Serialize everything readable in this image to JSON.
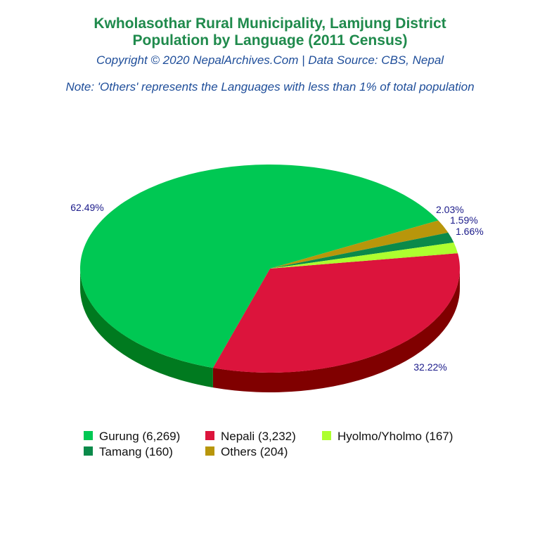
{
  "title_line1": "Kwholasothar Rural Municipality, Lamjung District",
  "title_line2": "Population by Language (2011 Census)",
  "subtitle": "Copyright © 2020 NepalArchives.Com | Data Source: CBS, Nepal",
  "note": "Note: 'Others' represents the Languages with less than 1% of total population",
  "chart_data": {
    "type": "pie",
    "style": "3d",
    "slices": [
      {
        "label": "Gurung",
        "value": 6269,
        "percent_label": "62.49%",
        "legend": "Gurung (6,269)",
        "color": "#00c853",
        "side_color": "#007a1f"
      },
      {
        "label": "Nepali",
        "value": 3232,
        "percent_label": "32.22%",
        "legend": "Nepali (3,232)",
        "color": "#dc143c",
        "side_color": "#800000"
      },
      {
        "label": "Hyolmo/Yholmo",
        "value": 167,
        "percent_label": "1.66%",
        "legend": "Hyolmo/Yholmo (167)",
        "color": "#adff2f",
        "side_color": "#6a9a1a"
      },
      {
        "label": "Tamang",
        "value": 160,
        "percent_label": "1.59%",
        "legend": "Tamang (160)",
        "color": "#0b8a4a",
        "side_color": "#05552c"
      },
      {
        "label": "Others",
        "value": 204,
        "percent_label": "2.03%",
        "legend": "Others (204)",
        "color": "#b8960b",
        "side_color": "#7a6307"
      }
    ],
    "legend_position": "bottom"
  }
}
